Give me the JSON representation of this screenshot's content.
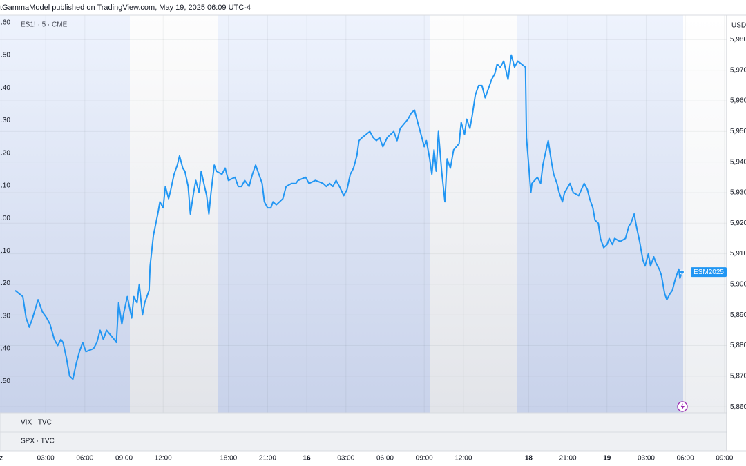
{
  "chart_data": {
    "type": "line",
    "header": "tGammaModel published on TradingView.com, May 19, 2025 06:09 UTC-4",
    "legend_label": "ES1! · 5 · CME",
    "currency": "USD",
    "panes": [
      "VIX · TVC",
      "SPX · TVC"
    ],
    "x": [
      14,
      21,
      24,
      27,
      30,
      35,
      39,
      43,
      46,
      50,
      53,
      56,
      58,
      61,
      64,
      67,
      70,
      73,
      76,
      79,
      86,
      89,
      92,
      95,
      98,
      105,
      107,
      109,
      112,
      114,
      117,
      121,
      123,
      126,
      128,
      131,
      133,
      137,
      138,
      141,
      145,
      147,
      150,
      152,
      155,
      157,
      160,
      163,
      165,
      168,
      170,
      173,
      175,
      178,
      180,
      183,
      185,
      188,
      190,
      192,
      194,
      197,
      199,
      204,
      207,
      210,
      216,
      219,
      222,
      225,
      229,
      232,
      235,
      238,
      241,
      243,
      246,
      249,
      251,
      254,
      257,
      260,
      263,
      268,
      272,
      274,
      281,
      284,
      290,
      297,
      300,
      303,
      306,
      309,
      312,
      316,
      319,
      322,
      325,
      328,
      330,
      333,
      340,
      343,
      346,
      349,
      352,
      356,
      362,
      365,
      368,
      375,
      378,
      381,
      384,
      387,
      390,
      392,
      395,
      397,
      399,
      401,
      403,
      406,
      409,
      411,
      414,
      417,
      422,
      424,
      427,
      429,
      432,
      434,
      437,
      440,
      443,
      446,
      449,
      452,
      455,
      457,
      460,
      463,
      467,
      470,
      473,
      476,
      483,
      484,
      486,
      488,
      489,
      494,
      497,
      499,
      502,
      504,
      507,
      509,
      512,
      514,
      517,
      519,
      524,
      527,
      532,
      537,
      540,
      542,
      545,
      547,
      550,
      552,
      555,
      558,
      560,
      563,
      565,
      570,
      575,
      578,
      580,
      583,
      585,
      588,
      591,
      593,
      596,
      598,
      601,
      603,
      606,
      608,
      611,
      613,
      616,
      618,
      621,
      624,
      625,
      627
    ],
    "series": [
      {
        "name": "ESM2025",
        "color": "#2196f3",
        "values": [
          5898,
          5896,
          5889,
          5886,
          5889,
          5895,
          5891,
          5889,
          5887,
          5882,
          5880,
          5882,
          5881,
          5876,
          5870,
          5869,
          5874,
          5878,
          5881,
          5878,
          5879,
          5881,
          5885,
          5882,
          5885,
          5882,
          5881,
          5894,
          5887,
          5891,
          5896,
          5889,
          5896,
          5894,
          5900,
          5890,
          5894,
          5898,
          5906,
          5916,
          5923,
          5927,
          5925,
          5932,
          5928,
          5931,
          5936,
          5939,
          5942,
          5938,
          5937,
          5932,
          5923,
          5930,
          5934,
          5930,
          5937,
          5932,
          5929,
          5923,
          5930,
          5939,
          5937,
          5936,
          5938,
          5934,
          5935,
          5932,
          5932,
          5934,
          5932,
          5936,
          5939,
          5936,
          5933,
          5927,
          5925,
          5925,
          5927,
          5926,
          5927,
          5928,
          5932,
          5933,
          5933,
          5934,
          5935,
          5933,
          5934,
          5933,
          5932,
          5933,
          5932,
          5934,
          5932,
          5929,
          5931,
          5936,
          5938,
          5942,
          5947,
          5948,
          5950,
          5948,
          5947,
          5948,
          5945,
          5948,
          5950,
          5947,
          5951,
          5954,
          5956,
          5957,
          5953,
          5949,
          5945,
          5947,
          5941,
          5936,
          5944,
          5937,
          5950,
          5937,
          5927,
          5941,
          5938,
          5944,
          5946,
          5953,
          5949,
          5954,
          5951,
          5955,
          5962,
          5965,
          5965,
          5961,
          5964,
          5967,
          5969,
          5972,
          5971,
          5973,
          5967,
          5975,
          5971,
          5973,
          5971,
          5948,
          5939,
          5930,
          5933,
          5935,
          5933,
          5939,
          5944,
          5947,
          5940,
          5936,
          5933,
          5930,
          5927,
          5930,
          5933,
          5930,
          5929,
          5933,
          5931,
          5928,
          5925,
          5921,
          5920,
          5915,
          5912,
          5913,
          5915,
          5913,
          5915,
          5914,
          5915,
          5919,
          5920,
          5923,
          5919,
          5914,
          5908,
          5906,
          5910,
          5906,
          5909,
          5907,
          5905,
          5903,
          5897,
          5895,
          5897,
          5898,
          5902,
          5905,
          5902,
          5904
        ]
      }
    ],
    "xlim": [
      0,
      668
    ],
    "xticks": [
      {
        "value": 1,
        "label": "z"
      },
      {
        "value": 42,
        "label": "03:00"
      },
      {
        "value": 78,
        "label": "06:00"
      },
      {
        "value": 114,
        "label": "09:00"
      },
      {
        "value": 150,
        "label": "12:00"
      },
      {
        "value": 210,
        "label": "18:00"
      },
      {
        "value": 246,
        "label": "21:00"
      },
      {
        "value": 282,
        "label": "16"
      },
      {
        "value": 318,
        "label": "03:00"
      },
      {
        "value": 354,
        "label": "06:00"
      },
      {
        "value": 390,
        "label": "09:00"
      },
      {
        "value": 426,
        "label": "12:00"
      },
      {
        "value": 486,
        "label": "18"
      },
      {
        "value": 522,
        "label": "21:00"
      },
      {
        "value": 558,
        "label": "19"
      },
      {
        "value": 594,
        "label": "03:00"
      },
      {
        "value": 630,
        "label": "06:00"
      },
      {
        "value": 666,
        "label": "09:00"
      }
    ],
    "ylim": [
      5858,
      5988
    ],
    "yticks": [
      {
        "value": 5980,
        "label": "5,980"
      },
      {
        "value": 5970,
        "label": "5,970"
      },
      {
        "value": 5960,
        "label": "5,960"
      },
      {
        "value": 5950,
        "label": "5,950"
      },
      {
        "value": 5940,
        "label": "5,940"
      },
      {
        "value": 5930,
        "label": "5,930"
      },
      {
        "value": 5920,
        "label": "5,920"
      },
      {
        "value": 5910,
        "label": "5,910"
      },
      {
        "value": 5900,
        "label": "5,900"
      },
      {
        "value": 5890,
        "label": "5,890"
      },
      {
        "value": 5880,
        "label": "5,880"
      },
      {
        "value": 5870,
        "label": "5,870"
      },
      {
        "value": 5860,
        "label": "5,860"
      }
    ],
    "y2lim": [
      -0.597,
      0.623
    ],
    "y2ticks": [
      {
        "value": 0.6,
        "label": ".60"
      },
      {
        "value": 0.5,
        "label": ".50"
      },
      {
        "value": 0.4,
        "label": ".40"
      },
      {
        "value": 0.3,
        "label": ".30"
      },
      {
        "value": 0.2,
        "label": ".20"
      },
      {
        "value": 0.1,
        "label": ".10"
      },
      {
        "value": 0,
        "label": ".00"
      },
      {
        "value": -0.1,
        "label": ".10"
      },
      {
        "value": -0.2,
        "label": ".20"
      },
      {
        "value": -0.3,
        "label": ".30"
      },
      {
        "value": -0.4,
        "label": ".40"
      },
      {
        "value": -0.5,
        "label": ".50"
      }
    ],
    "grid": true
  }
}
